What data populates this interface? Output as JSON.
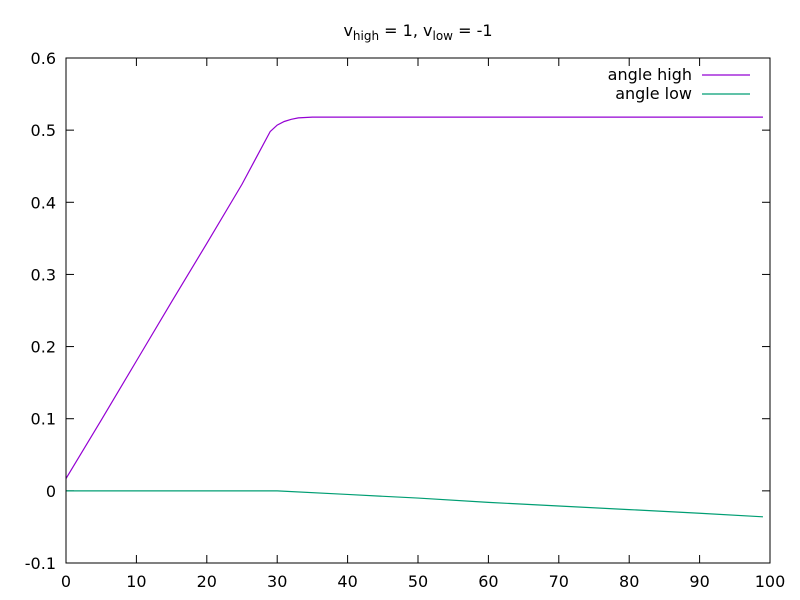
{
  "chart_data": {
    "type": "line",
    "title": {
      "main1": "v",
      "sub1": "high",
      "mid": " = 1, v",
      "sub2": "low",
      "end": " = -1"
    },
    "xlabel": "",
    "ylabel": "",
    "xlim": [
      0,
      100
    ],
    "ylim": [
      -0.1,
      0.6
    ],
    "xticks": [
      0,
      10,
      20,
      30,
      40,
      50,
      60,
      70,
      80,
      90,
      100
    ],
    "xtick_labels": [
      "0",
      "10",
      "20",
      "30",
      "40",
      "50",
      "60",
      "70",
      "80",
      "90",
      "100"
    ],
    "yticks": [
      -0.1,
      0,
      0.1,
      0.2,
      0.3,
      0.4,
      0.5,
      0.6
    ],
    "ytick_labels": [
      "-0.1",
      "0",
      "0.1",
      "0.2",
      "0.3",
      "0.4",
      "0.5",
      "0.6"
    ],
    "grid": false,
    "legend_position": "top-right",
    "series": [
      {
        "name": "angle high",
        "color": "#9400d3",
        "x": [
          0,
          5,
          10,
          15,
          20,
          25,
          29,
          30,
          31,
          32,
          33,
          35,
          40,
          50,
          60,
          70,
          80,
          90,
          99
        ],
        "y": [
          0.017,
          0.098,
          0.18,
          0.262,
          0.343,
          0.425,
          0.498,
          0.507,
          0.512,
          0.515,
          0.517,
          0.518,
          0.518,
          0.518,
          0.518,
          0.518,
          0.518,
          0.518,
          0.518
        ]
      },
      {
        "name": "angle low",
        "color": "#009e73",
        "x": [
          0,
          10,
          20,
          30,
          40,
          50,
          60,
          70,
          80,
          90,
          99
        ],
        "y": [
          0,
          0,
          0,
          0,
          -0.005,
          -0.01,
          -0.016,
          -0.021,
          -0.026,
          -0.031,
          -0.036
        ]
      }
    ]
  }
}
